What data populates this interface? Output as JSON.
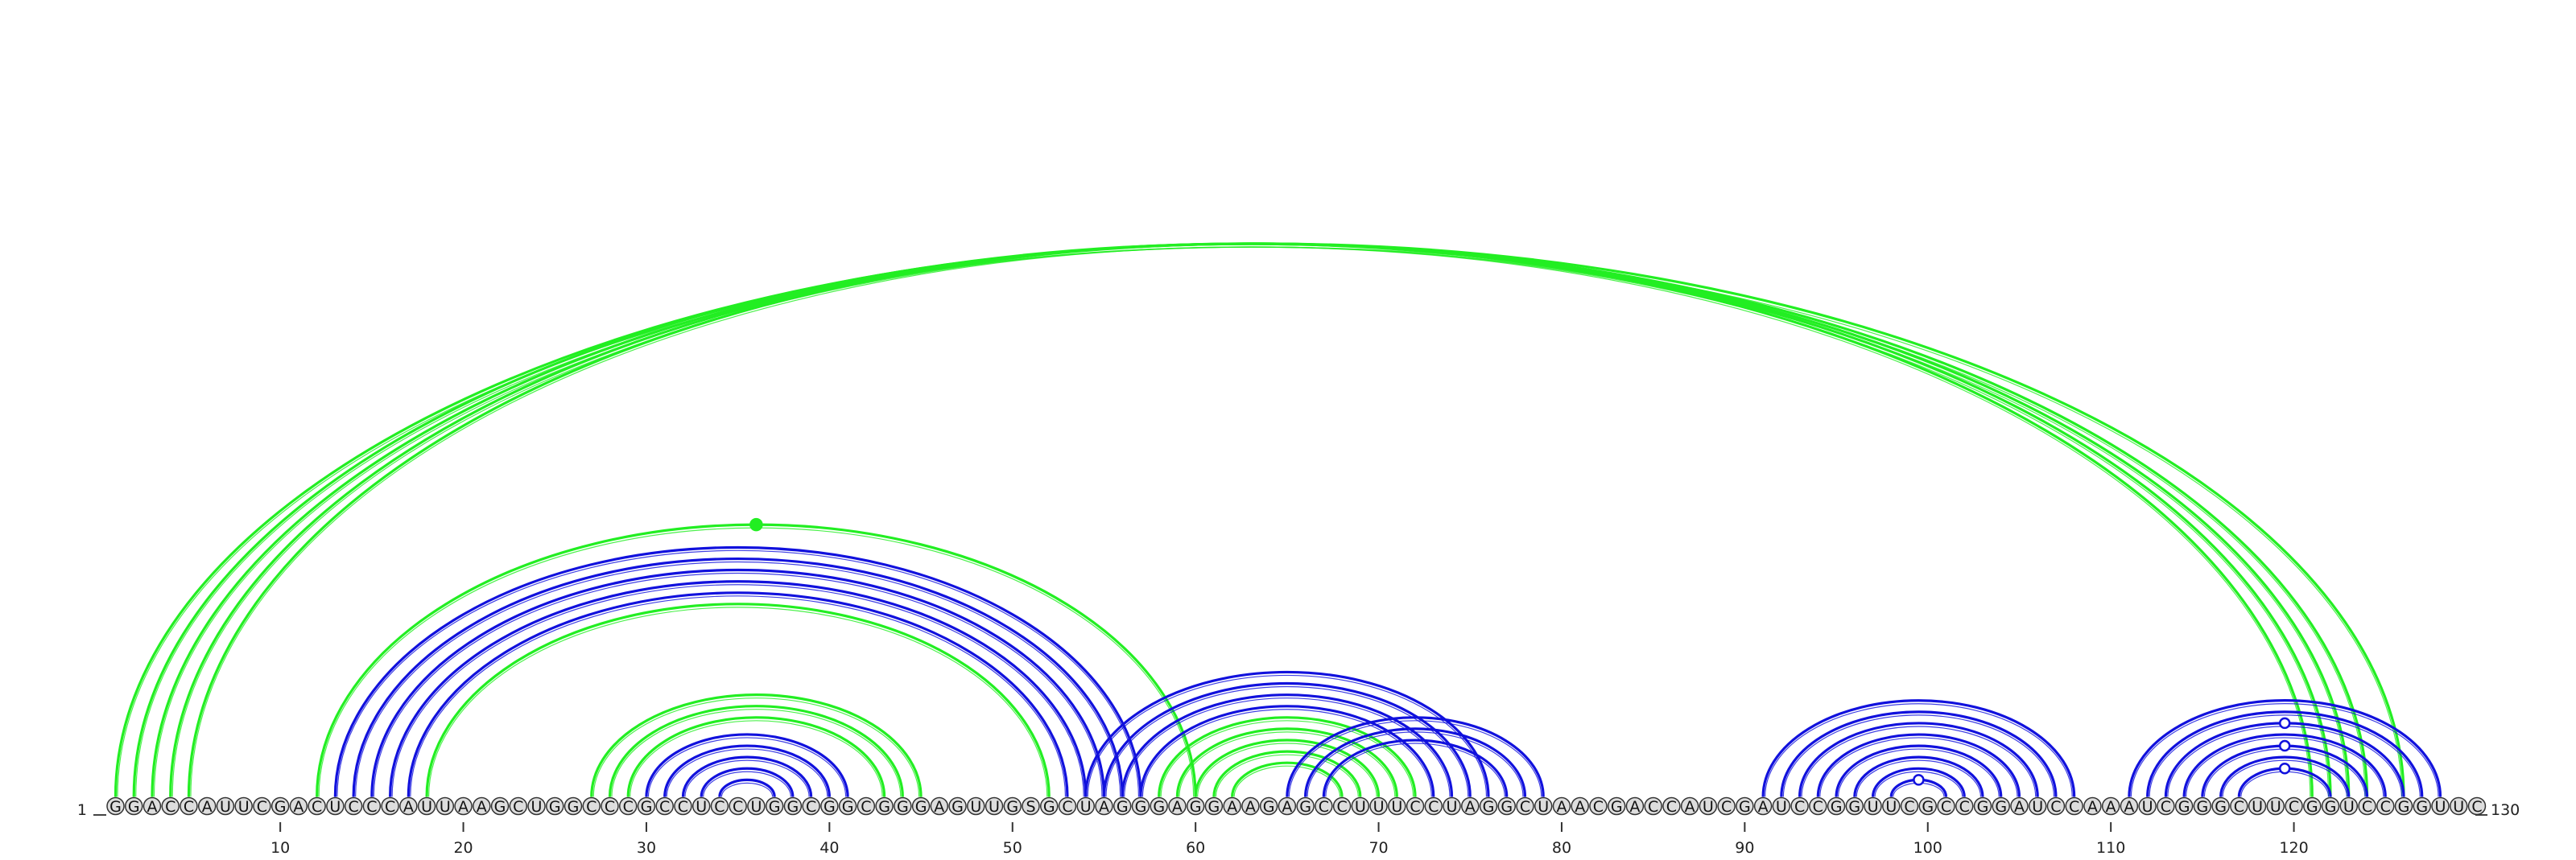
{
  "diagram": {
    "type": "rna-arc-diagram",
    "sequence": "GGACCAUUCGACUCCCAUUAAGCUGGCCCGCCUCCUGGCGGCGGGAGUUGSGCUAGGGAGGAAGAGCCUUUCCUAGGCUAACGACCAUCGAUCCGGUUCGCCGGAUCCAAAUCGGGCUUCGGUCCGGUUC",
    "start_label": "1",
    "end_label": "130",
    "tick_labels": [
      "10",
      "20",
      "30",
      "40",
      "50",
      "60",
      "70",
      "80",
      "90",
      "100",
      "110",
      "120"
    ],
    "tick_positions": [
      10,
      20,
      30,
      40,
      50,
      60,
      70,
      80,
      90,
      100,
      110,
      120
    ],
    "colors": {
      "green": "#22ee22",
      "blue": "#1111dd",
      "nucleotide_fill": "#dddddd"
    },
    "arc_groups": [
      {
        "color": "green",
        "pairs": [
          [
            1,
            126
          ],
          [
            2,
            124
          ],
          [
            3,
            123
          ],
          [
            4,
            122
          ],
          [
            5,
            121
          ]
        ]
      },
      {
        "color": "blue",
        "pairs": [
          [
            13,
            57
          ],
          [
            14,
            56
          ],
          [
            15,
            55
          ],
          [
            16,
            54
          ],
          [
            17,
            53
          ]
        ]
      },
      {
        "color": "green",
        "pairs": [
          [
            12,
            60
          ],
          [
            18,
            52
          ]
        ]
      },
      {
        "color": "green",
        "pairs": [
          [
            27,
            45
          ],
          [
            28,
            44
          ],
          [
            29,
            43
          ]
        ]
      },
      {
        "color": "blue",
        "pairs": [
          [
            30,
            41
          ],
          [
            31,
            40
          ],
          [
            32,
            39
          ],
          [
            33,
            38
          ],
          [
            34,
            37
          ]
        ]
      },
      {
        "color": "blue",
        "pairs": [
          [
            54,
            76
          ],
          [
            55,
            75
          ],
          [
            56,
            74
          ],
          [
            57,
            73
          ]
        ]
      },
      {
        "color": "green",
        "pairs": [
          [
            58,
            72
          ],
          [
            59,
            71
          ],
          [
            60,
            70
          ],
          [
            61,
            69
          ],
          [
            62,
            68
          ]
        ]
      },
      {
        "color": "blue",
        "pairs": [
          [
            65,
            79
          ],
          [
            66,
            78
          ],
          [
            67,
            77
          ]
        ]
      },
      {
        "color": "blue",
        "pairs": [
          [
            91,
            108
          ],
          [
            92,
            107
          ],
          [
            93,
            106
          ],
          [
            94,
            105
          ],
          [
            95,
            104
          ],
          [
            96,
            103
          ],
          [
            97,
            102
          ],
          [
            98,
            101
          ]
        ]
      },
      {
        "color": "blue",
        "pairs": [
          [
            111,
            128
          ],
          [
            112,
            127
          ],
          [
            113,
            126
          ],
          [
            114,
            125
          ],
          [
            115,
            124
          ],
          [
            116,
            123
          ],
          [
            117,
            122
          ]
        ]
      }
    ],
    "markers": [
      {
        "pos": 36,
        "color": "green",
        "filled": true,
        "arc": [
          12,
          60
        ]
      },
      {
        "pos": 99,
        "color": "blue",
        "filled": false,
        "arc": [
          98,
          101
        ]
      },
      {
        "pos": 119,
        "color": "blue",
        "filled": false,
        "arc": [
          117,
          122
        ]
      },
      {
        "pos": 119,
        "color": "blue",
        "filled": false,
        "arc": [
          115,
          124
        ]
      },
      {
        "pos": 119,
        "color": "blue",
        "filled": false,
        "arc": [
          113,
          126
        ]
      }
    ]
  }
}
